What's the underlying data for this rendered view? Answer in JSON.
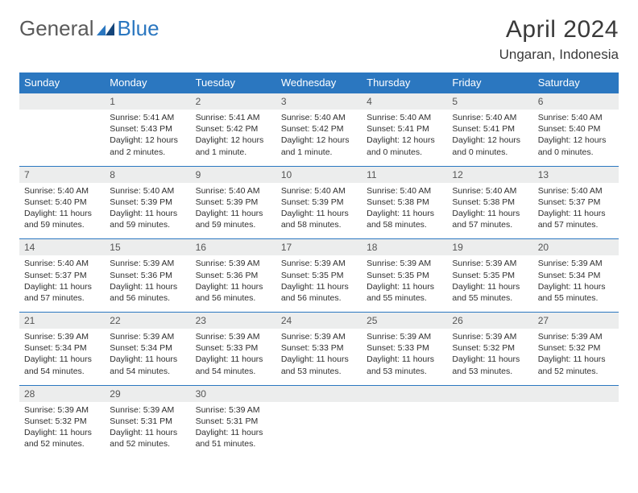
{
  "logo": {
    "part1": "General",
    "part2": "Blue"
  },
  "title": "April 2024",
  "location": "Ungaran, Indonesia",
  "colors": {
    "header_bg": "#2b77c0",
    "header_fg": "#ffffff",
    "row_divider": "#2b77c0",
    "daynum_bg": "#eceded",
    "text": "#2f2f2f"
  },
  "weekdays": [
    "Sunday",
    "Monday",
    "Tuesday",
    "Wednesday",
    "Thursday",
    "Friday",
    "Saturday"
  ],
  "weeks": [
    {
      "nums": [
        "",
        "1",
        "2",
        "3",
        "4",
        "5",
        "6"
      ],
      "cells": [
        null,
        {
          "sunrise": "Sunrise: 5:41 AM",
          "sunset": "Sunset: 5:43 PM",
          "day1": "Daylight: 12 hours",
          "day2": "and 2 minutes."
        },
        {
          "sunrise": "Sunrise: 5:41 AM",
          "sunset": "Sunset: 5:42 PM",
          "day1": "Daylight: 12 hours",
          "day2": "and 1 minute."
        },
        {
          "sunrise": "Sunrise: 5:40 AM",
          "sunset": "Sunset: 5:42 PM",
          "day1": "Daylight: 12 hours",
          "day2": "and 1 minute."
        },
        {
          "sunrise": "Sunrise: 5:40 AM",
          "sunset": "Sunset: 5:41 PM",
          "day1": "Daylight: 12 hours",
          "day2": "and 0 minutes."
        },
        {
          "sunrise": "Sunrise: 5:40 AM",
          "sunset": "Sunset: 5:41 PM",
          "day1": "Daylight: 12 hours",
          "day2": "and 0 minutes."
        },
        {
          "sunrise": "Sunrise: 5:40 AM",
          "sunset": "Sunset: 5:40 PM",
          "day1": "Daylight: 12 hours",
          "day2": "and 0 minutes."
        }
      ]
    },
    {
      "nums": [
        "7",
        "8",
        "9",
        "10",
        "11",
        "12",
        "13"
      ],
      "cells": [
        {
          "sunrise": "Sunrise: 5:40 AM",
          "sunset": "Sunset: 5:40 PM",
          "day1": "Daylight: 11 hours",
          "day2": "and 59 minutes."
        },
        {
          "sunrise": "Sunrise: 5:40 AM",
          "sunset": "Sunset: 5:39 PM",
          "day1": "Daylight: 11 hours",
          "day2": "and 59 minutes."
        },
        {
          "sunrise": "Sunrise: 5:40 AM",
          "sunset": "Sunset: 5:39 PM",
          "day1": "Daylight: 11 hours",
          "day2": "and 59 minutes."
        },
        {
          "sunrise": "Sunrise: 5:40 AM",
          "sunset": "Sunset: 5:39 PM",
          "day1": "Daylight: 11 hours",
          "day2": "and 58 minutes."
        },
        {
          "sunrise": "Sunrise: 5:40 AM",
          "sunset": "Sunset: 5:38 PM",
          "day1": "Daylight: 11 hours",
          "day2": "and 58 minutes."
        },
        {
          "sunrise": "Sunrise: 5:40 AM",
          "sunset": "Sunset: 5:38 PM",
          "day1": "Daylight: 11 hours",
          "day2": "and 57 minutes."
        },
        {
          "sunrise": "Sunrise: 5:40 AM",
          "sunset": "Sunset: 5:37 PM",
          "day1": "Daylight: 11 hours",
          "day2": "and 57 minutes."
        }
      ]
    },
    {
      "nums": [
        "14",
        "15",
        "16",
        "17",
        "18",
        "19",
        "20"
      ],
      "cells": [
        {
          "sunrise": "Sunrise: 5:40 AM",
          "sunset": "Sunset: 5:37 PM",
          "day1": "Daylight: 11 hours",
          "day2": "and 57 minutes."
        },
        {
          "sunrise": "Sunrise: 5:39 AM",
          "sunset": "Sunset: 5:36 PM",
          "day1": "Daylight: 11 hours",
          "day2": "and 56 minutes."
        },
        {
          "sunrise": "Sunrise: 5:39 AM",
          "sunset": "Sunset: 5:36 PM",
          "day1": "Daylight: 11 hours",
          "day2": "and 56 minutes."
        },
        {
          "sunrise": "Sunrise: 5:39 AM",
          "sunset": "Sunset: 5:35 PM",
          "day1": "Daylight: 11 hours",
          "day2": "and 56 minutes."
        },
        {
          "sunrise": "Sunrise: 5:39 AM",
          "sunset": "Sunset: 5:35 PM",
          "day1": "Daylight: 11 hours",
          "day2": "and 55 minutes."
        },
        {
          "sunrise": "Sunrise: 5:39 AM",
          "sunset": "Sunset: 5:35 PM",
          "day1": "Daylight: 11 hours",
          "day2": "and 55 minutes."
        },
        {
          "sunrise": "Sunrise: 5:39 AM",
          "sunset": "Sunset: 5:34 PM",
          "day1": "Daylight: 11 hours",
          "day2": "and 55 minutes."
        }
      ]
    },
    {
      "nums": [
        "21",
        "22",
        "23",
        "24",
        "25",
        "26",
        "27"
      ],
      "cells": [
        {
          "sunrise": "Sunrise: 5:39 AM",
          "sunset": "Sunset: 5:34 PM",
          "day1": "Daylight: 11 hours",
          "day2": "and 54 minutes."
        },
        {
          "sunrise": "Sunrise: 5:39 AM",
          "sunset": "Sunset: 5:34 PM",
          "day1": "Daylight: 11 hours",
          "day2": "and 54 minutes."
        },
        {
          "sunrise": "Sunrise: 5:39 AM",
          "sunset": "Sunset: 5:33 PM",
          "day1": "Daylight: 11 hours",
          "day2": "and 54 minutes."
        },
        {
          "sunrise": "Sunrise: 5:39 AM",
          "sunset": "Sunset: 5:33 PM",
          "day1": "Daylight: 11 hours",
          "day2": "and 53 minutes."
        },
        {
          "sunrise": "Sunrise: 5:39 AM",
          "sunset": "Sunset: 5:33 PM",
          "day1": "Daylight: 11 hours",
          "day2": "and 53 minutes."
        },
        {
          "sunrise": "Sunrise: 5:39 AM",
          "sunset": "Sunset: 5:32 PM",
          "day1": "Daylight: 11 hours",
          "day2": "and 53 minutes."
        },
        {
          "sunrise": "Sunrise: 5:39 AM",
          "sunset": "Sunset: 5:32 PM",
          "day1": "Daylight: 11 hours",
          "day2": "and 52 minutes."
        }
      ]
    },
    {
      "nums": [
        "28",
        "29",
        "30",
        "",
        "",
        "",
        ""
      ],
      "cells": [
        {
          "sunrise": "Sunrise: 5:39 AM",
          "sunset": "Sunset: 5:32 PM",
          "day1": "Daylight: 11 hours",
          "day2": "and 52 minutes."
        },
        {
          "sunrise": "Sunrise: 5:39 AM",
          "sunset": "Sunset: 5:31 PM",
          "day1": "Daylight: 11 hours",
          "day2": "and 52 minutes."
        },
        {
          "sunrise": "Sunrise: 5:39 AM",
          "sunset": "Sunset: 5:31 PM",
          "day1": "Daylight: 11 hours",
          "day2": "and 51 minutes."
        },
        null,
        null,
        null,
        null
      ]
    }
  ]
}
